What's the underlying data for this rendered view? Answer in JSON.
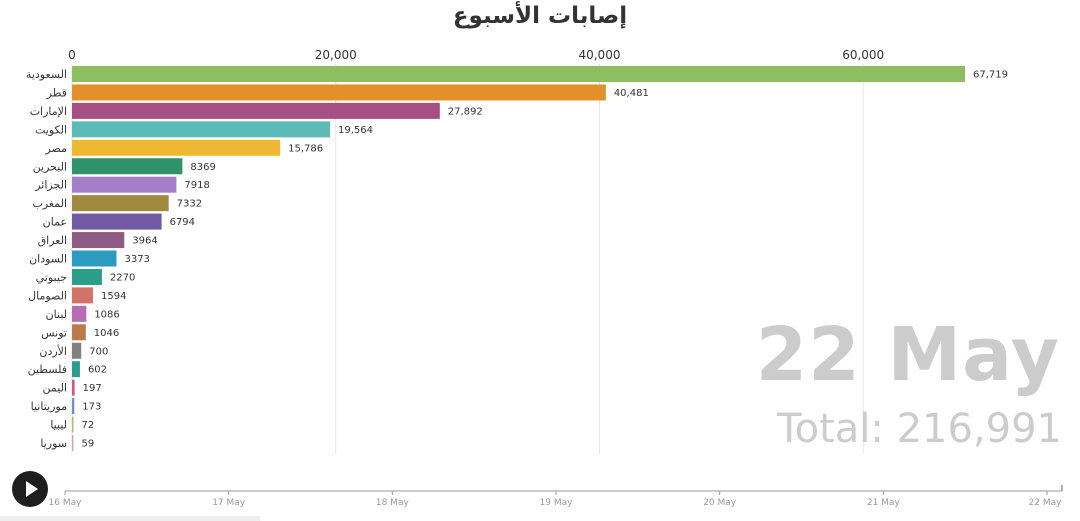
{
  "chart_data": {
    "type": "bar",
    "title": "إصابات الأسبوع",
    "categories": [
      "السعودية",
      "قطر",
      "الإمارات",
      "الكويت",
      "مصر",
      "البحرين",
      "الجزائر",
      "المغرب",
      "عمان",
      "العراق",
      "السودان",
      "جيبوتي",
      "الصومال",
      "لبنان",
      "تونس",
      "الأردن",
      "فلسطين",
      "اليمن",
      "موريتانيا",
      "ليبيا",
      "سوريا"
    ],
    "values": [
      67719,
      40481,
      27892,
      19564,
      15786,
      8369,
      7918,
      7332,
      6794,
      3964,
      3373,
      2270,
      1594,
      1086,
      1046,
      700,
      602,
      197,
      173,
      72,
      59
    ],
    "value_labels": [
      "67,719",
      "40,481",
      "27,892",
      "19,564",
      "15,786",
      "8369",
      "7918",
      "7332",
      "6794",
      "3964",
      "3373",
      "2270",
      "1594",
      "1086",
      "1046",
      "700",
      "602",
      "197",
      "173",
      "72",
      "59"
    ],
    "colors": [
      "#8dbe5f",
      "#e38f2a",
      "#a64f82",
      "#5cbab7",
      "#eeb832",
      "#2f9268",
      "#a47fc8",
      "#a0893f",
      "#7159a3",
      "#8e5b84",
      "#2b9cbf",
      "#2a9e88",
      "#d37266",
      "#b56cb2",
      "#ba7a4a",
      "#808080",
      "#2b9e90",
      "#d05a78",
      "#6b8ed6",
      "#a6c26c",
      "#e0a0b8"
    ],
    "ticks": [
      0,
      20000,
      40000,
      60000
    ],
    "tick_labels": [
      "0",
      "20,000",
      "40,000",
      "60,000"
    ],
    "xlim": [
      0,
      70000
    ],
    "grid": true,
    "current_date": "22 May",
    "total_label": "Total: 216,991",
    "timeline_labels": [
      "16 May",
      "17 May",
      "18 May",
      "19 May",
      "20 May",
      "21 May",
      "22 May"
    ]
  },
  "controls": {
    "play_icon": "play-icon"
  }
}
